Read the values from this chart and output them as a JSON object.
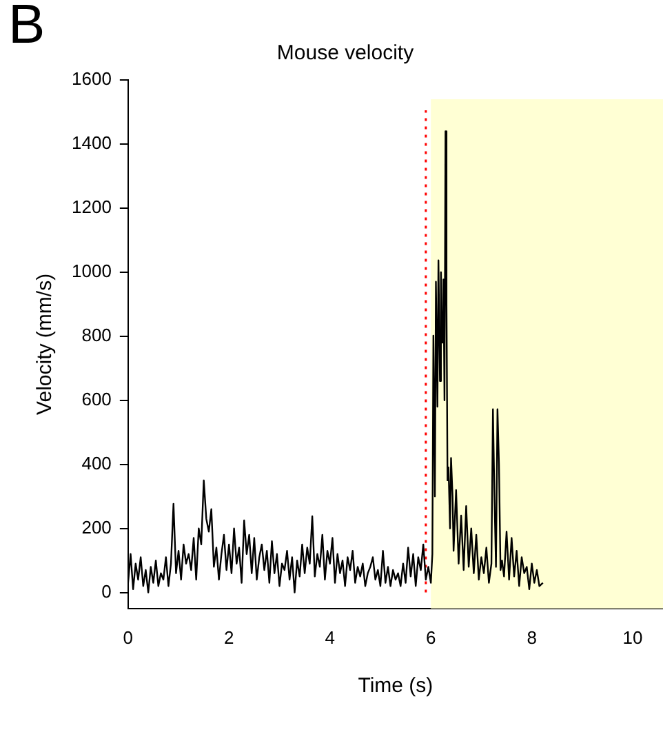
{
  "chart_data": {
    "type": "line",
    "title": "Mouse velocity",
    "xlabel": "Time (s)",
    "ylabel": "Velocity (mm/s)",
    "annotations": [
      "B"
    ],
    "x": [
      0,
      0.05,
      0.1,
      0.15,
      0.2,
      0.25,
      0.3,
      0.35,
      0.4,
      0.45,
      0.5,
      0.55,
      0.6,
      0.65,
      0.7,
      0.75,
      0.8,
      0.85,
      0.9,
      0.95,
      1,
      1.05,
      1.1,
      1.15,
      1.2,
      1.25,
      1.3,
      1.35,
      1.4,
      1.45,
      1.5,
      1.55,
      1.6,
      1.65,
      1.7,
      1.75,
      1.8,
      1.85,
      1.9,
      1.95,
      2,
      2.05,
      2.1,
      2.15,
      2.2,
      2.25,
      2.3,
      2.35,
      2.4,
      2.45,
      2.5,
      2.55,
      2.6,
      2.65,
      2.7,
      2.75,
      2.8,
      2.85,
      2.9,
      2.95,
      3,
      3.05,
      3.1,
      3.15,
      3.2,
      3.25,
      3.3,
      3.35,
      3.4,
      3.45,
      3.5,
      3.55,
      3.6,
      3.65,
      3.7,
      3.75,
      3.8,
      3.85,
      3.9,
      3.95,
      4,
      4.05,
      4.1,
      4.15,
      4.2,
      4.25,
      4.3,
      4.35,
      4.4,
      4.45,
      4.5,
      4.55,
      4.6,
      4.65,
      4.7,
      4.75,
      4.8,
      4.85,
      4.9,
      4.95,
      5,
      5.05,
      5.1,
      5.15,
      5.2,
      5.25,
      5.3,
      5.35,
      5.4,
      5.45,
      5.5,
      5.55,
      5.6,
      5.65,
      5.7,
      5.75,
      5.8,
      5.85,
      5.9,
      5.95,
      6,
      6.03,
      6.05,
      6.08,
      6.1,
      6.13,
      6.15,
      6.18,
      6.2,
      6.23,
      6.25,
      6.27,
      6.29,
      6.31,
      6.33,
      6.35,
      6.38,
      6.4,
      6.43,
      6.45,
      6.5,
      6.55,
      6.6,
      6.65,
      6.7,
      6.75,
      6.8,
      6.85,
      6.9,
      6.95,
      7,
      7.05,
      7.1,
      7.15,
      7.2,
      7.23,
      7.26,
      7.29,
      7.32,
      7.35,
      7.38,
      7.41,
      7.45,
      7.5,
      7.55,
      7.6,
      7.65,
      7.7,
      7.75,
      7.8,
      7.85,
      7.9,
      7.95,
      8,
      8.05,
      8.1,
      8.15,
      8.22
    ],
    "series": [
      {
        "color": "#000000",
        "values": [
          30,
          120,
          10,
          90,
          40,
          110,
          20,
          70,
          0,
          80,
          30,
          100,
          20,
          60,
          40,
          110,
          20,
          90,
          277,
          60,
          130,
          40,
          150,
          90,
          120,
          70,
          170,
          40,
          200,
          150,
          350,
          230,
          190,
          260,
          80,
          140,
          40,
          120,
          180,
          70,
          150,
          60,
          200,
          90,
          140,
          30,
          225,
          120,
          180,
          60,
          170,
          40,
          110,
          150,
          70,
          130,
          30,
          160,
          60,
          120,
          20,
          90,
          70,
          130,
          40,
          110,
          0,
          100,
          50,
          150,
          60,
          140,
          90,
          238,
          50,
          120,
          80,
          180,
          40,
          130,
          90,
          170,
          30,
          120,
          60,
          100,
          20,
          110,
          70,
          130,
          30,
          80,
          50,
          90,
          20,
          60,
          80,
          110,
          40,
          70,
          20,
          130,
          30,
          80,
          20,
          70,
          40,
          60,
          20,
          90,
          30,
          140,
          50,
          120,
          20,
          110,
          70,
          150,
          40,
          80,
          30,
          120,
          802,
          300,
          970,
          580,
          1037,
          660,
          1000,
          780,
          977,
          600,
          1440,
          900,
          350,
          390,
          200,
          420,
          300,
          130,
          320,
          90,
          240,
          70,
          270,
          80,
          200,
          60,
          180,
          40,
          110,
          60,
          140,
          30,
          90,
          572,
          300,
          80,
          572,
          400,
          70,
          100,
          50,
          190,
          40,
          170,
          50,
          130,
          20,
          110,
          60,
          80,
          10,
          90,
          30,
          70,
          20,
          30
        ]
      }
    ],
    "xlim": [
      0,
      10.6
    ],
    "ylim": [
      -50,
      1600
    ],
    "xticks": [
      0,
      2,
      4,
      6,
      8,
      10
    ],
    "yticks": [
      0,
      200,
      400,
      600,
      800,
      1000,
      1200,
      1400,
      1600
    ],
    "ref_lines": [
      {
        "axis": "x",
        "value": 5.9,
        "color": "#ff0000",
        "line_style": "dotted"
      }
    ],
    "bands": [
      {
        "axis": "x",
        "from": 6,
        "to": 10.6,
        "color": "#ffffd4"
      }
    ],
    "grid": false,
    "legend": false,
    "marker": "none",
    "line_style": "solid"
  }
}
